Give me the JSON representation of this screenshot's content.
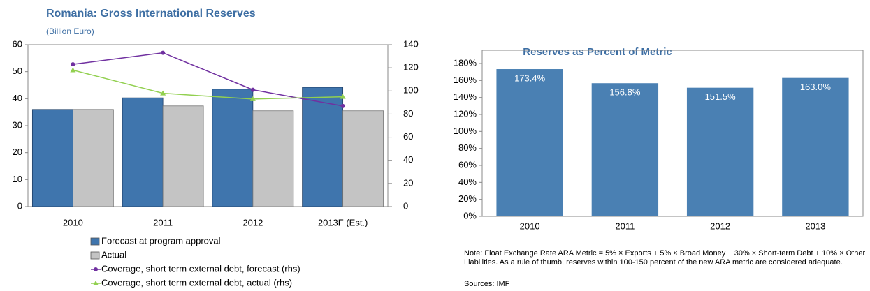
{
  "chart_data": [
    {
      "type": "bar",
      "title": "Romania: Gross International Reserves",
      "subtitle": "(Billion Euro)",
      "categories": [
        "2010",
        "2011",
        "2012",
        "2013F (Est.)"
      ],
      "series": [
        {
          "name": "Forecast at program approval",
          "color": "#3f75ad",
          "values": [
            36,
            40.3,
            43.5,
            44.2
          ]
        },
        {
          "name": "Actual",
          "color": "#c4c4c4",
          "values": [
            36,
            37.3,
            35.5,
            35.5
          ]
        },
        {
          "name": "Coverage, short term external debt, forecast (rhs)",
          "color": "#7030a0",
          "axis": "y2",
          "marker": "circle",
          "values": [
            123,
            133,
            101,
            87
          ]
        },
        {
          "name": "Coverage, short term external debt, actual (rhs)",
          "color": "#92d050",
          "axis": "y2",
          "marker": "triangle",
          "values": [
            118,
            98,
            93,
            95
          ]
        }
      ],
      "ylim": [
        0,
        60
      ],
      "yticks": [
        0,
        10,
        20,
        30,
        40,
        50,
        60
      ],
      "y2lim": [
        0,
        140
      ],
      "y2ticks": [
        0,
        20,
        40,
        60,
        80,
        100,
        120,
        140
      ]
    },
    {
      "type": "bar",
      "title": "Reserves as Percent of Metric",
      "categories": [
        "2010",
        "2011",
        "2012",
        "2013"
      ],
      "values": [
        173.4,
        156.8,
        151.5,
        163.0
      ],
      "value_labels": [
        "173.4%",
        "156.8%",
        "151.5%",
        "163.0%"
      ],
      "color": "#4a80b3",
      "ylim": [
        0,
        180
      ],
      "yticks": [
        {
          "value": 0,
          "label": "0%"
        },
        {
          "value": 20,
          "label": "20%"
        },
        {
          "value": 40,
          "label": "40%"
        },
        {
          "value": 60,
          "label": "60%"
        },
        {
          "value": 80,
          "label": "80%"
        },
        {
          "value": 100,
          "label": "100%"
        },
        {
          "value": 120,
          "label": "120%"
        },
        {
          "value": 140,
          "label": "140%"
        },
        {
          "value": 160,
          "label": "160%"
        },
        {
          "value": 180,
          "label": "180%"
        }
      ],
      "note": "Note: Float Exchange Rate ARA Metric = 5% × Exports + 5% × Broad Money + 30% × Short-term Debt + 10% × Other Liabilities. As a rule of thumb, reserves within 100-150 percent of the new ARA metric are considered adequate.",
      "source": "Sources: IMF"
    }
  ]
}
